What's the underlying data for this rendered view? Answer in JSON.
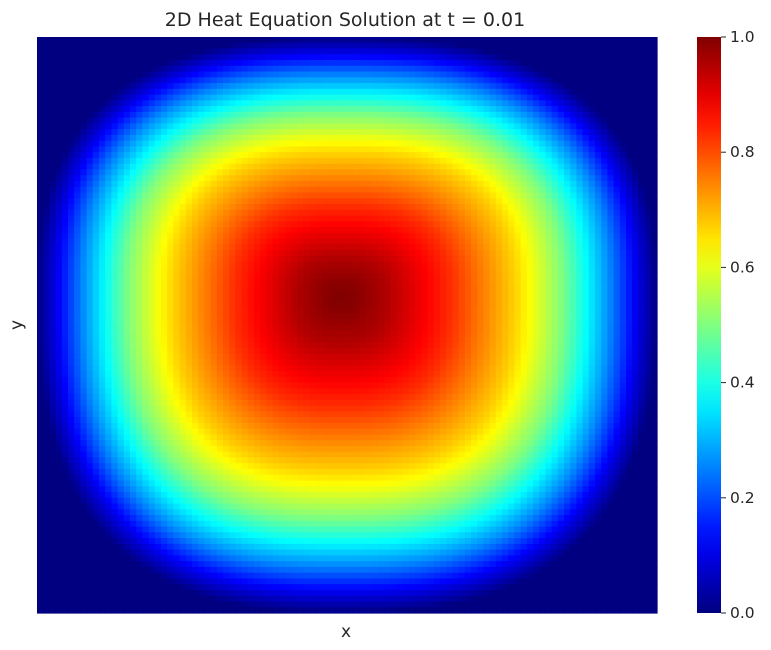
{
  "chart_data": {
    "type": "heatmap",
    "title": "2D Heat Equation Solution at t = 0.01",
    "xlabel": "x",
    "ylabel": "y",
    "colormap": "jet",
    "value_range": [
      0.0,
      1.0
    ],
    "grid": false,
    "x_ticks_shown": false,
    "y_ticks_shown": false,
    "colorbar": {
      "position": "right",
      "ticks": [
        0.0,
        0.2,
        0.4,
        0.6,
        0.8,
        1.0
      ],
      "tick_labels": [
        "0.0",
        "0.2",
        "0.4",
        "0.6",
        "0.8",
        "1.0"
      ]
    },
    "grid_resolution": [
      100,
      100
    ],
    "peak": {
      "x_fraction": 0.49,
      "y_fraction": 0.45,
      "value": 1.0
    },
    "boundary_value": 0.0,
    "profile": {
      "description": "Values along a line through the peak, from domain edge (0) to peak (1)",
      "distance_fraction": [
        0.0,
        0.05,
        0.1,
        0.15,
        0.2,
        0.25,
        0.3,
        0.35,
        0.4,
        0.45,
        0.5,
        0.55,
        0.6,
        0.65,
        0.7,
        0.75,
        0.8,
        0.85,
        0.9,
        0.95,
        1.0
      ],
      "value": [
        0.0,
        0.08,
        0.17,
        0.26,
        0.34,
        0.42,
        0.5,
        0.56,
        0.62,
        0.67,
        0.71,
        0.75,
        0.79,
        0.83,
        0.86,
        0.89,
        0.92,
        0.95,
        0.97,
        0.99,
        1.0
      ]
    }
  }
}
